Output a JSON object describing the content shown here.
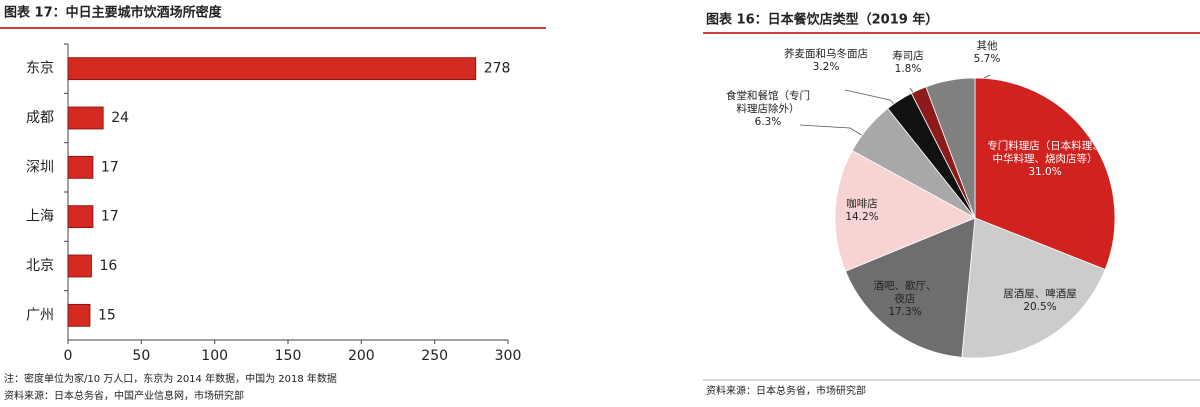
{
  "chart_data": [
    {
      "type": "hbar",
      "title": "图表 17：中日主要城市饮酒场所密度",
      "categories": [
        "东京",
        "成都",
        "深圳",
        "上海",
        "北京",
        "广州"
      ],
      "values": [
        278,
        24,
        17,
        17,
        16,
        15
      ],
      "color": "#d42a22",
      "xlim": [
        0,
        300
      ],
      "xticks": [
        0,
        50,
        100,
        150,
        200,
        250,
        300
      ],
      "note": "注：密度单位为家/10 万人口，东京为 2014 年数据，中国为 2018 年数据",
      "source": "资料来源：日本总务省，中国产业信息网，市场研究部"
    },
    {
      "type": "pie",
      "title": "图表 16：日本餐饮店类型（2019 年）",
      "categories": [
        "专门料理店（日本料理、中华料理、烧肉店等）",
        "居酒屋、啤酒屋",
        "酒吧、歌厅、夜店",
        "咖啡店",
        "食堂和餐馆（专门料理店除外）",
        "荞麦面和乌冬面店",
        "寿司店",
        "其他"
      ],
      "values": [
        31.0,
        20.5,
        17.3,
        14.2,
        6.3,
        3.2,
        1.8,
        5.7
      ],
      "value_labels": [
        "31.0%",
        "20.5%",
        "17.3%",
        "14.2%",
        "6.3%",
        "3.2%",
        "1.8%",
        "5.7%"
      ],
      "colors": [
        "#d0221f",
        "#cccccc",
        "#6e6e6e",
        "#f8d3d3",
        "#a8a8a8",
        "#111111",
        "#8e1b1b",
        "#808080"
      ],
      "source": "资料来源：日本总务省，市场研究部"
    }
  ]
}
